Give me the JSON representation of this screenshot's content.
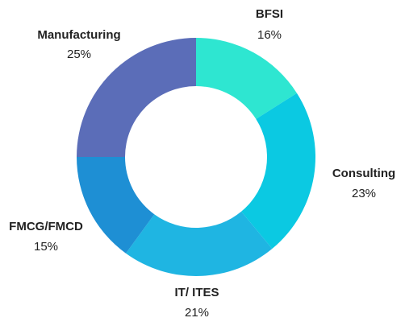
{
  "chart_data": {
    "type": "pie",
    "donut": true,
    "slices": [
      {
        "name": "BFSI",
        "value": 16,
        "label": "16%",
        "color": "#2ee6d1"
      },
      {
        "name": "Consulting",
        "value": 23,
        "label": "23%",
        "color": "#0bc9e2"
      },
      {
        "name": "IT/ ITES",
        "value": 21,
        "label": "21%",
        "color": "#1fb5e2"
      },
      {
        "name": "FMCG/FMCD",
        "value": 15,
        "label": "15%",
        "color": "#1e8fd4"
      },
      {
        "name": "Manufacturing",
        "value": 25,
        "label": "25%",
        "color": "#5b6db8"
      }
    ]
  }
}
